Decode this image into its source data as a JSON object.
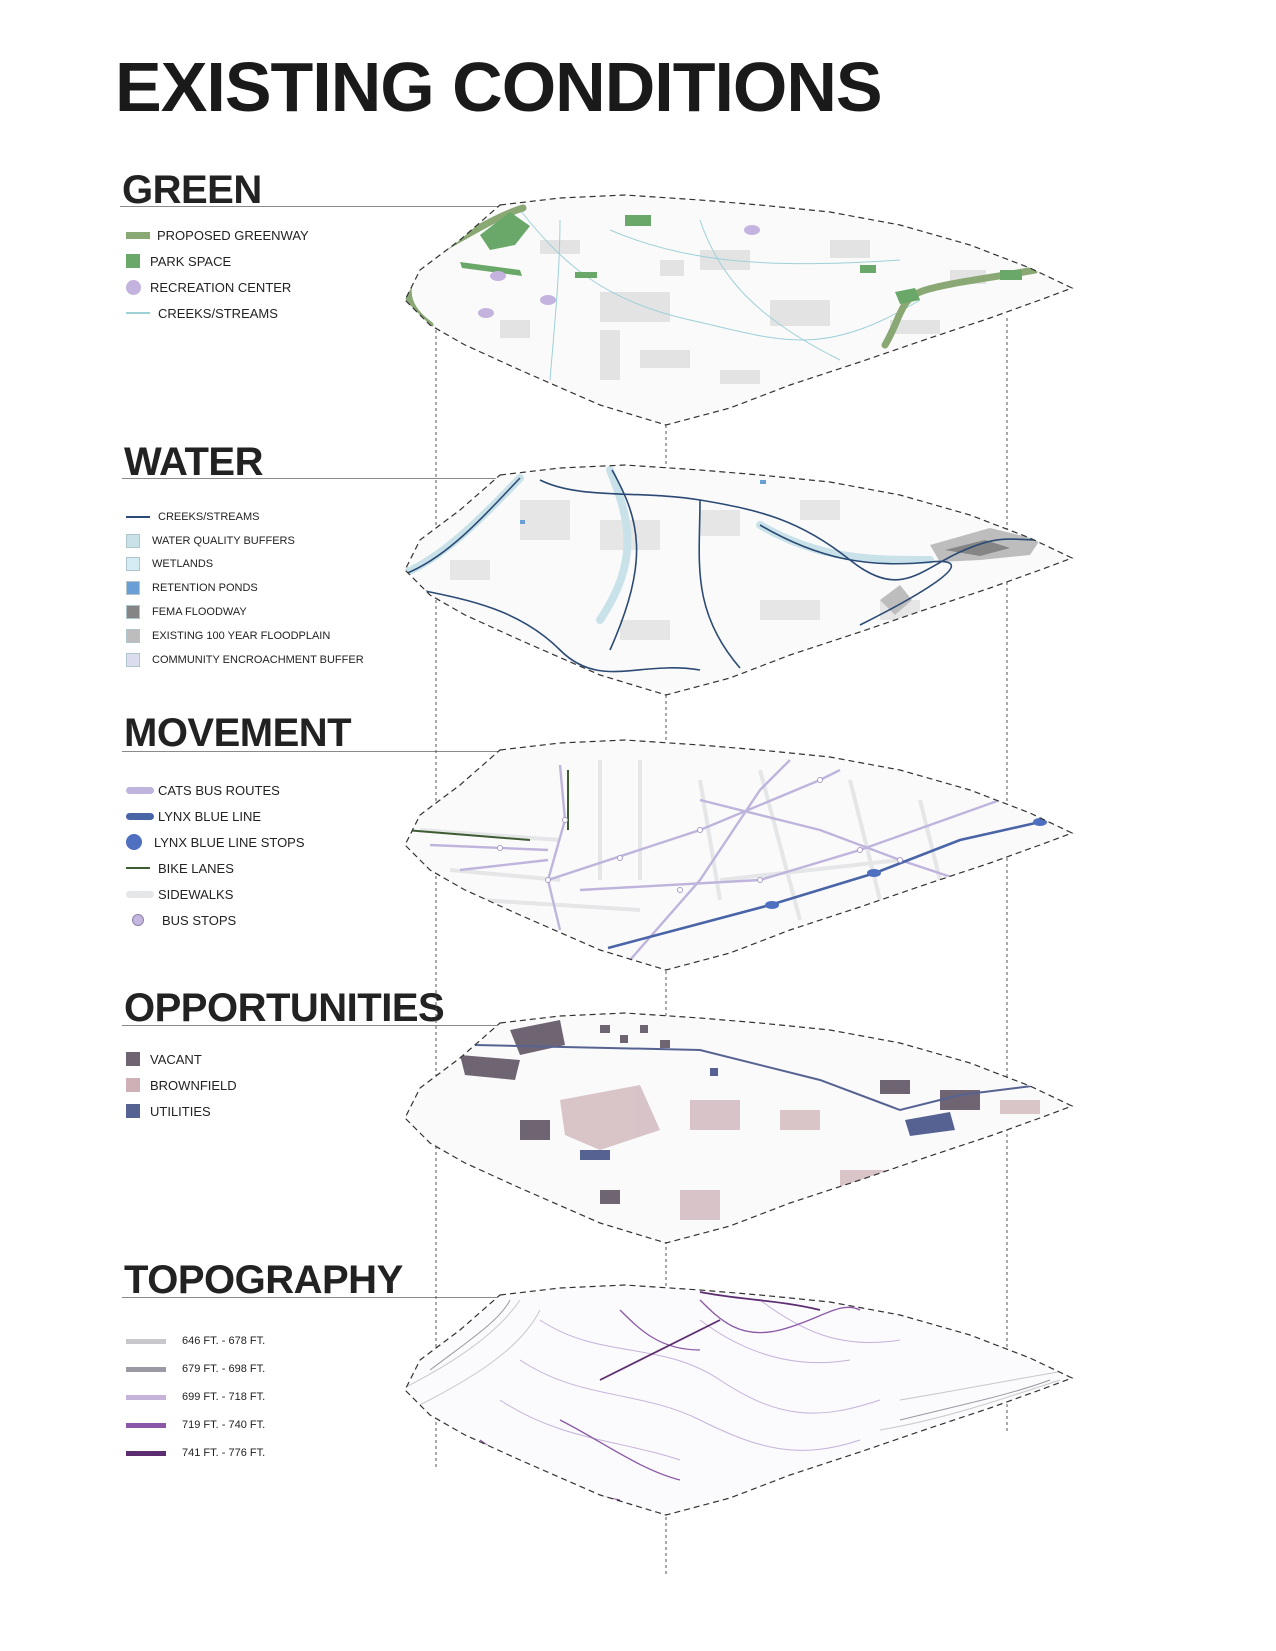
{
  "title": "EXISTING CONDITIONS",
  "colors": {
    "greenway": "#8aa873",
    "park": "#6aa86a",
    "recreation": "#c4b3de",
    "creek_light": "#9ed0d8",
    "creek_dark": "#2b4a74",
    "wq_buffer": "#c9e2ea",
    "wetlands": "#d5ecf4",
    "retention": "#6a9fd6",
    "fema": "#858585",
    "floodplain_100": "#bdbdbd",
    "encroachment": "#dcdcef",
    "cats_bus": "#bfb4dc",
    "lynx_line": "#4a64a8",
    "lynx_stop": "#4f6fc0",
    "bike": "#3e5c32",
    "sidewalk": "#e4e6e8",
    "bus_stop": "#c4b7e0",
    "vacant": "#6f6472",
    "brownfield": "#cdb1b7",
    "utilities": "#566392",
    "topo_1": "#c8c8cc",
    "topo_2": "#9a99a4",
    "topo_3": "#c5b3da",
    "topo_4": "#8a58a6",
    "topo_5": "#5c2d70"
  },
  "layers": [
    {
      "title": "GREEN",
      "legend": [
        {
          "label": "PROPOSED GREENWAY",
          "symbol": "bar",
          "color": "greenway"
        },
        {
          "label": "PARK SPACE",
          "symbol": "square",
          "color": "park"
        },
        {
          "label": "RECREATION CENTER",
          "symbol": "circle",
          "color": "recreation"
        },
        {
          "label": "CREEKS/STREAMS",
          "symbol": "line",
          "color": "creek_light"
        }
      ]
    },
    {
      "title": "WATER",
      "legend": [
        {
          "label": "CREEKS/STREAMS",
          "symbol": "line",
          "color": "creek_dark"
        },
        {
          "label": "WATER QUALITY BUFFERS",
          "symbol": "square",
          "color": "wq_buffer"
        },
        {
          "label": "WETLANDS",
          "symbol": "square",
          "color": "wetlands"
        },
        {
          "label": "RETENTION PONDS",
          "symbol": "square",
          "color": "retention"
        },
        {
          "label": "FEMA FLOODWAY",
          "symbol": "square",
          "color": "fema"
        },
        {
          "label": "EXISTING 100 YEAR FLOODPLAIN",
          "symbol": "square",
          "color": "floodplain_100"
        },
        {
          "label": "COMMUNITY ENCROACHMENT BUFFER",
          "symbol": "square",
          "color": "encroachment"
        }
      ]
    },
    {
      "title": "MOVEMENT",
      "legend": [
        {
          "label": "CATS BUS ROUTES",
          "symbol": "thickbar",
          "color": "cats_bus"
        },
        {
          "label": "LYNX BLUE LINE",
          "symbol": "thickbar",
          "color": "lynx_line"
        },
        {
          "label": "LYNX BLUE LINE STOPS",
          "symbol": "bigcircle",
          "color": "lynx_stop"
        },
        {
          "label": "BIKE LANES",
          "symbol": "line",
          "color": "bike"
        },
        {
          "label": "SIDEWALKS",
          "symbol": "thickbar",
          "color": "sidewalk"
        },
        {
          "label": "BUS STOPS",
          "symbol": "smallcircle",
          "color": "bus_stop"
        }
      ]
    },
    {
      "title": "OPPORTUNITIES",
      "legend": [
        {
          "label": "VACANT",
          "symbol": "square",
          "color": "vacant"
        },
        {
          "label": "BROWNFIELD",
          "symbol": "square",
          "color": "brownfield"
        },
        {
          "label": "UTILITIES",
          "symbol": "square",
          "color": "utilities"
        }
      ]
    },
    {
      "title": "TOPOGRAPHY",
      "legend": [
        {
          "label": "646 FT. - 678 FT.",
          "symbol": "wide",
          "color": "topo_1"
        },
        {
          "label": "679 FT. - 698 FT.",
          "symbol": "wide",
          "color": "topo_2"
        },
        {
          "label": "699 FT. - 718 FT.",
          "symbol": "wide",
          "color": "topo_3"
        },
        {
          "label": "719 FT. - 740 FT.",
          "symbol": "wide",
          "color": "topo_4"
        },
        {
          "label": "741 FT. - 776 FT.",
          "symbol": "wide",
          "color": "topo_5"
        }
      ]
    }
  ]
}
